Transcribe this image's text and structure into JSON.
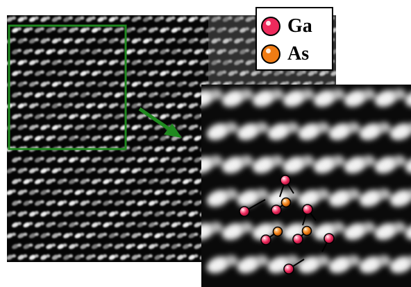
{
  "legend": {
    "items": [
      {
        "label": "Ga",
        "color": "#ee2a5c",
        "icon": "ga-atom-icon"
      },
      {
        "label": "As",
        "color": "#f07c14",
        "icon": "as-atom-icon"
      }
    ]
  },
  "colors": {
    "highlight_box": "#1f8a1f",
    "arrow": "#1f8a1f",
    "bond": "#000000"
  }
}
